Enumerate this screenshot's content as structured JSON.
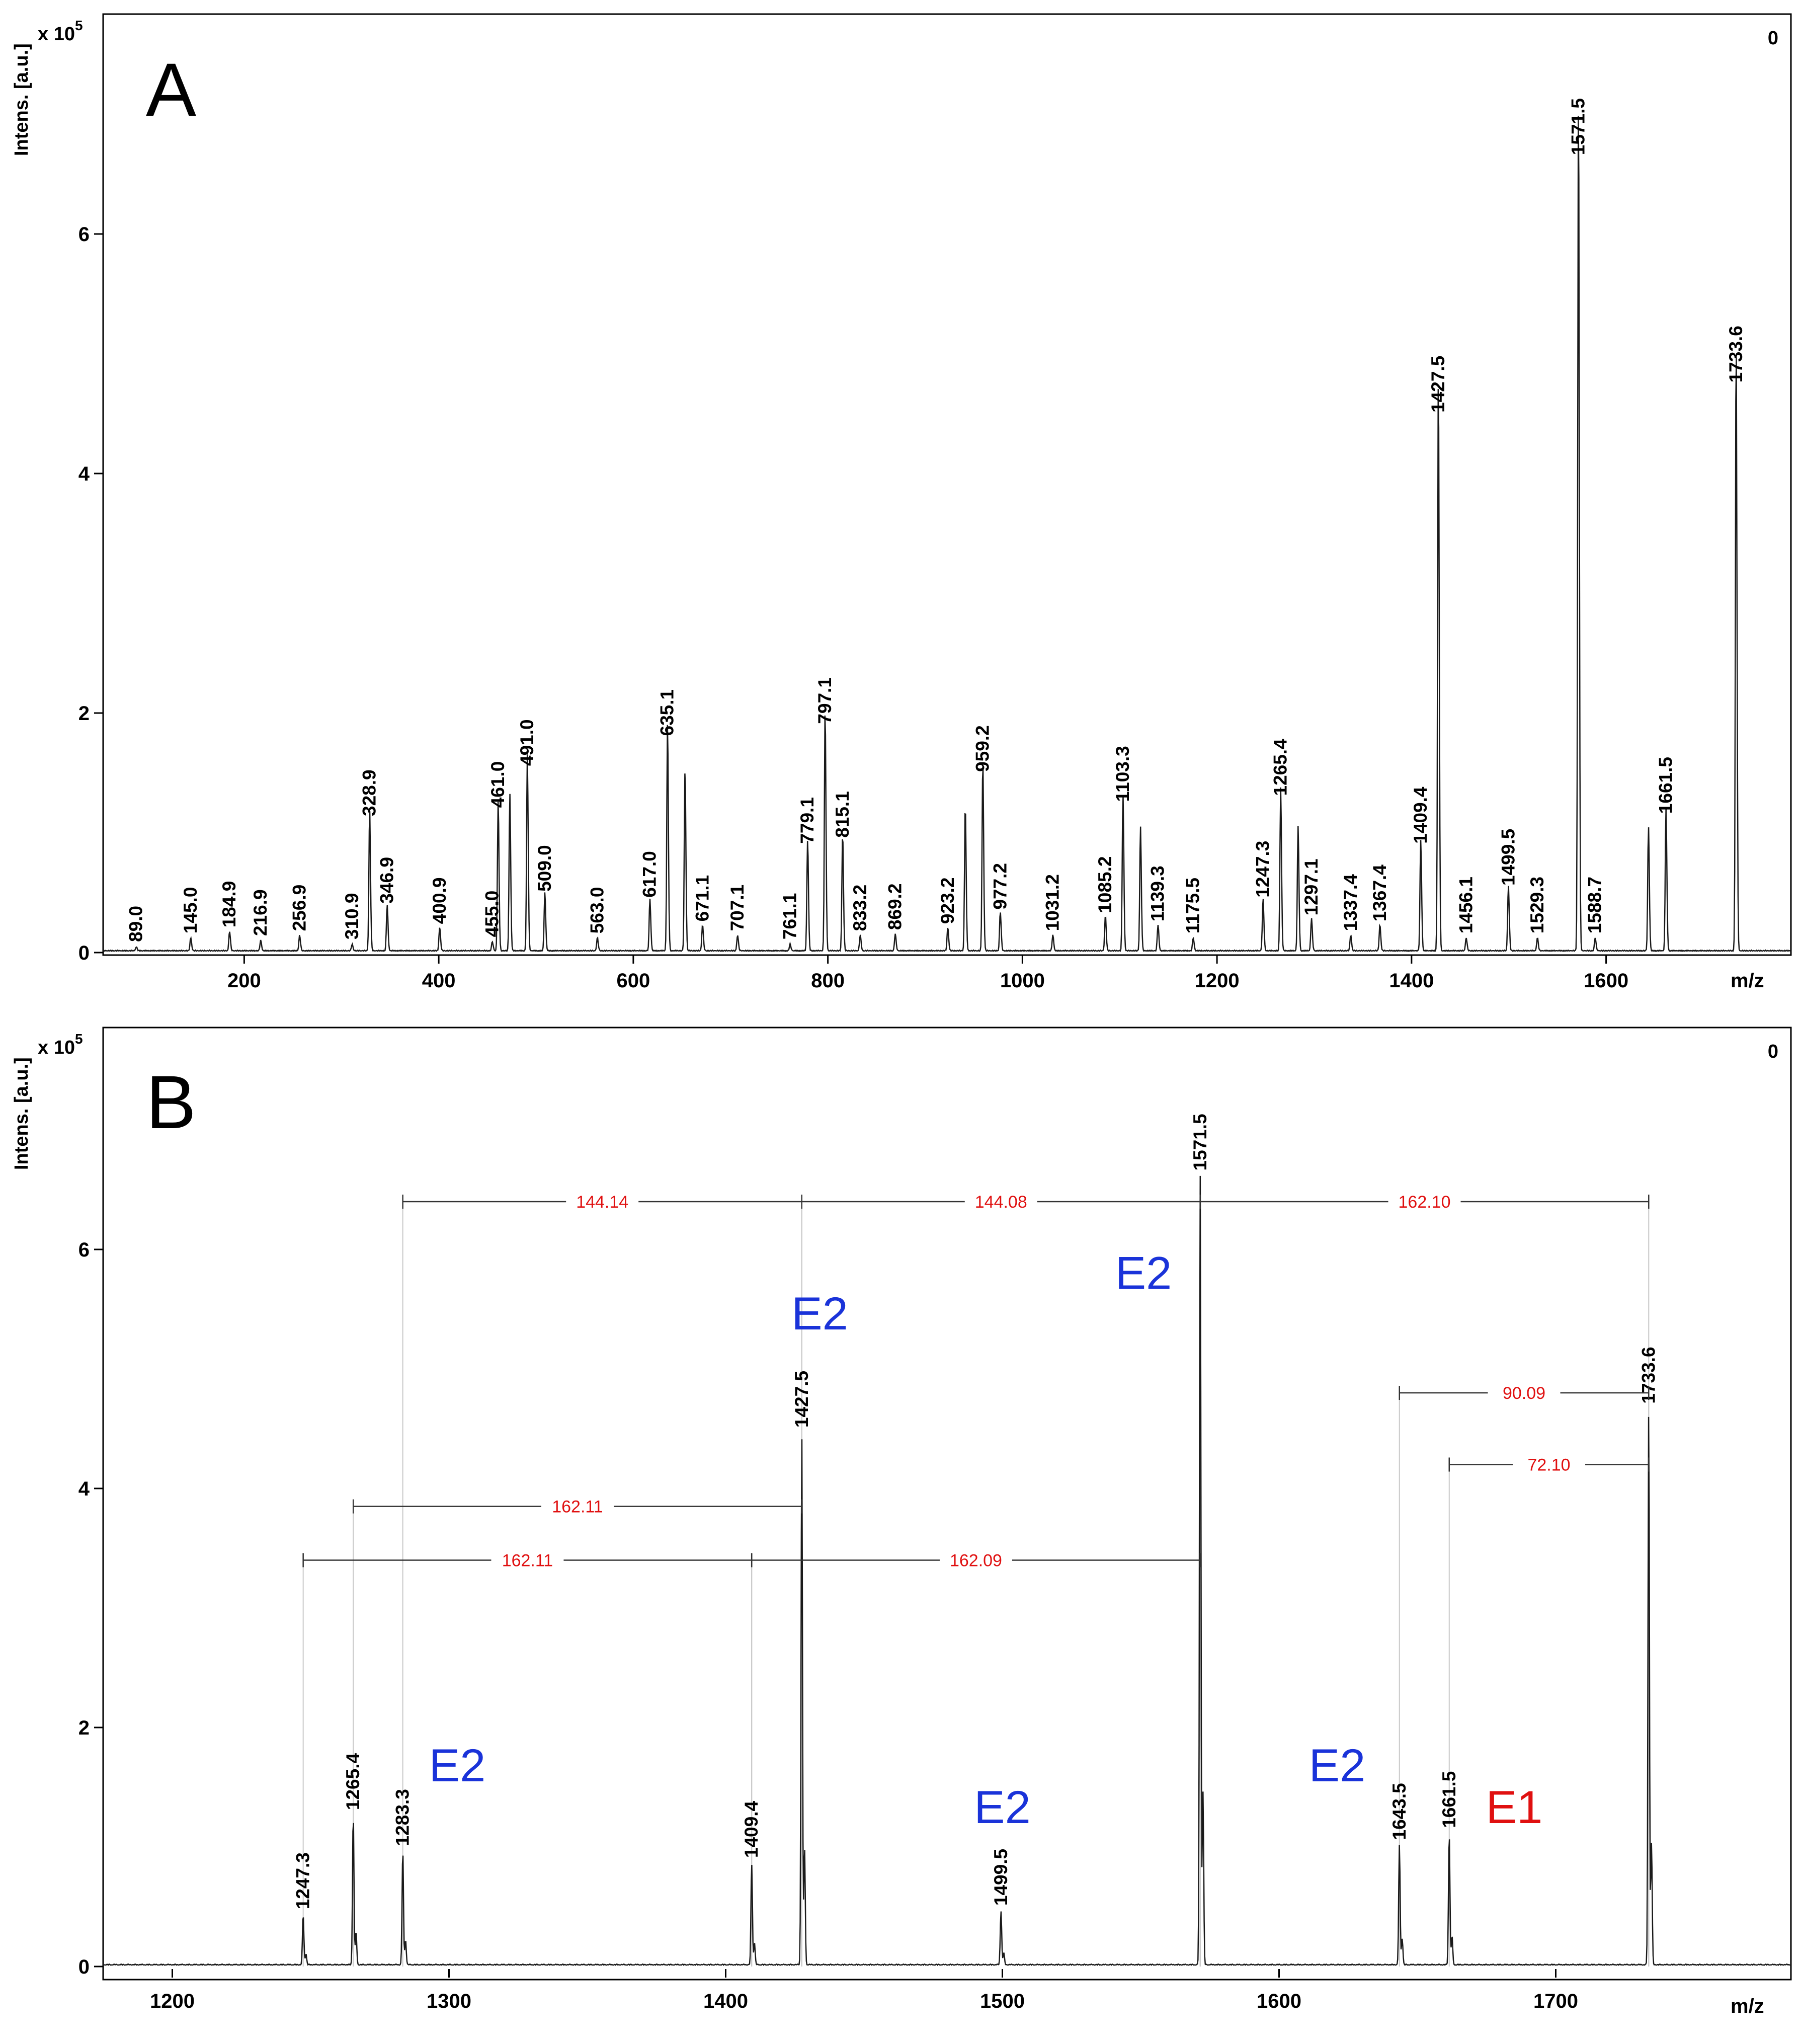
{
  "chart_data": [
    {
      "type": "line",
      "panel_label": "A",
      "corner_label": "0",
      "ylabel": "Intens. [a.u.]",
      "yscale_label": "x 10",
      "yscale_exp": "5",
      "xlabel": "m/z",
      "xlim": [
        55,
        1790
      ],
      "ylim": [
        0,
        7.8
      ],
      "xticks": [
        "200",
        "400",
        "600",
        "800",
        "1000",
        "1200",
        "1400",
        "1600"
      ],
      "yticks": [
        "0",
        "2",
        "4",
        "6"
      ],
      "peaks": [
        {
          "mz": 89.0,
          "intensity": 0.03,
          "label": "89.0"
        },
        {
          "mz": 145.0,
          "intensity": 0.1,
          "label": "145.0"
        },
        {
          "mz": 184.9,
          "intensity": 0.15,
          "label": "184.9"
        },
        {
          "mz": 216.9,
          "intensity": 0.08,
          "label": "216.9"
        },
        {
          "mz": 256.9,
          "intensity": 0.12,
          "label": "256.9"
        },
        {
          "mz": 310.9,
          "intensity": 0.05,
          "label": "310.9"
        },
        {
          "mz": 328.9,
          "intensity": 1.08,
          "label": "328.9"
        },
        {
          "mz": 346.9,
          "intensity": 0.35,
          "label": "346.9"
        },
        {
          "mz": 400.9,
          "intensity": 0.18,
          "label": "400.9"
        },
        {
          "mz": 455.0,
          "intensity": 0.07,
          "label": "455.0"
        },
        {
          "mz": 461.0,
          "intensity": 1.15,
          "label": "461.0"
        },
        {
          "mz": 491.0,
          "intensity": 1.5,
          "label": "491.0"
        },
        {
          "mz": 509.0,
          "intensity": 0.45,
          "label": "509.0"
        },
        {
          "mz": 563.0,
          "intensity": 0.1,
          "label": "563.0"
        },
        {
          "mz": 617.0,
          "intensity": 0.4,
          "label": "617.0"
        },
        {
          "mz": 635.1,
          "intensity": 1.75,
          "label": "635.1"
        },
        {
          "mz": 671.1,
          "intensity": 0.2,
          "label": "671.1"
        },
        {
          "mz": 707.1,
          "intensity": 0.12,
          "label": "707.1"
        },
        {
          "mz": 761.1,
          "intensity": 0.05,
          "label": "761.1"
        },
        {
          "mz": 779.1,
          "intensity": 0.85,
          "label": "779.1"
        },
        {
          "mz": 797.1,
          "intensity": 1.85,
          "label": "797.1"
        },
        {
          "mz": 815.1,
          "intensity": 0.9,
          "label": "815.1"
        },
        {
          "mz": 833.2,
          "intensity": 0.12,
          "label": "833.2"
        },
        {
          "mz": 869.2,
          "intensity": 0.13,
          "label": "869.2"
        },
        {
          "mz": 923.2,
          "intensity": 0.18,
          "label": "923.2"
        },
        {
          "mz": 959.2,
          "intensity": 1.45,
          "label": "959.2"
        },
        {
          "mz": 977.2,
          "intensity": 0.3,
          "label": "977.2"
        },
        {
          "mz": 1031.2,
          "intensity": 0.12,
          "label": "1031.2"
        },
        {
          "mz": 1085.2,
          "intensity": 0.27,
          "label": "1085.2"
        },
        {
          "mz": 1103.3,
          "intensity": 1.2,
          "label": "1103.3"
        },
        {
          "mz": 1139.3,
          "intensity": 0.2,
          "label": "1139.3"
        },
        {
          "mz": 1175.5,
          "intensity": 0.1,
          "label": "1175.5"
        },
        {
          "mz": 1247.3,
          "intensity": 0.4,
          "label": "1247.3"
        },
        {
          "mz": 1265.4,
          "intensity": 1.25,
          "label": "1265.4"
        },
        {
          "mz": 1297.1,
          "intensity": 0.25,
          "label": "1297.1"
        },
        {
          "mz": 1337.4,
          "intensity": 0.12,
          "label": "1337.4"
        },
        {
          "mz": 1367.4,
          "intensity": 0.2,
          "label": "1367.4"
        },
        {
          "mz": 1409.4,
          "intensity": 0.85,
          "label": "1409.4"
        },
        {
          "mz": 1427.5,
          "intensity": 4.45,
          "label": "1427.5"
        },
        {
          "mz": 1456.1,
          "intensity": 0.1,
          "label": "1456.1"
        },
        {
          "mz": 1499.5,
          "intensity": 0.5,
          "label": "1499.5"
        },
        {
          "mz": 1529.3,
          "intensity": 0.1,
          "label": "1529.3"
        },
        {
          "mz": 1571.5,
          "intensity": 6.6,
          "label": "1571.5"
        },
        {
          "mz": 1588.7,
          "intensity": 0.1,
          "label": "1588.7"
        },
        {
          "mz": 1661.5,
          "intensity": 1.1,
          "label": "1661.5"
        },
        {
          "mz": 1733.6,
          "intensity": 4.7,
          "label": "1733.6"
        }
      ],
      "unlabeled_peaks": [
        {
          "mz": 473.0,
          "intensity": 1.2
        },
        {
          "mz": 653.1,
          "intensity": 1.4
        },
        {
          "mz": 941.2,
          "intensity": 1.12
        },
        {
          "mz": 1121.3,
          "intensity": 0.95
        },
        {
          "mz": 1283.3,
          "intensity": 0.95
        },
        {
          "mz": 1643.5,
          "intensity": 0.95
        }
      ]
    },
    {
      "type": "line",
      "panel_label": "B",
      "corner_label": "0",
      "ylabel": "Intens. [a.u.]",
      "yscale_label": "x 10",
      "yscale_exp": "5",
      "xlabel": "m/z",
      "xlim": [
        1175,
        1785
      ],
      "ylim": [
        0,
        7.8
      ],
      "xticks": [
        "1200",
        "1300",
        "1400",
        "1500",
        "1600",
        "1700"
      ],
      "yticks": [
        "0",
        "2",
        "4",
        "6"
      ],
      "peaks": [
        {
          "mz": 1247.3,
          "intensity": 0.42,
          "label": "1247.3"
        },
        {
          "mz": 1265.4,
          "intensity": 1.25,
          "label": "1265.4"
        },
        {
          "mz": 1283.3,
          "intensity": 0.95,
          "label": "1283.3"
        },
        {
          "mz": 1409.4,
          "intensity": 0.85,
          "label": "1409.4"
        },
        {
          "mz": 1427.5,
          "intensity": 4.45,
          "label": "1427.5"
        },
        {
          "mz": 1499.5,
          "intensity": 0.45,
          "label": "1499.5"
        },
        {
          "mz": 1571.5,
          "intensity": 6.6,
          "label": "1571.5"
        },
        {
          "mz": 1643.5,
          "intensity": 1.0,
          "label": "1643.5"
        },
        {
          "mz": 1661.5,
          "intensity": 1.1,
          "label": "1661.5"
        },
        {
          "mz": 1733.6,
          "intensity": 4.65,
          "label": "1733.6"
        }
      ],
      "mass_differences": [
        {
          "from": 1283.3,
          "to": 1427.5,
          "y": 6.4,
          "label": "144.14"
        },
        {
          "from": 1427.5,
          "to": 1571.5,
          "y": 6.4,
          "label": "144.08"
        },
        {
          "from": 1571.5,
          "to": 1733.6,
          "y": 6.4,
          "label": "162.10"
        },
        {
          "from": 1643.5,
          "to": 1733.6,
          "y": 4.8,
          "label": "90.09"
        },
        {
          "from": 1661.5,
          "to": 1733.6,
          "y": 4.2,
          "label": "72.10"
        },
        {
          "from": 1265.4,
          "to": 1427.5,
          "y": 3.85,
          "label": "162.11"
        },
        {
          "from": 1247.3,
          "to": 1409.4,
          "y": 3.4,
          "label": "162.11"
        },
        {
          "from": 1409.4,
          "to": 1571.5,
          "y": 3.4,
          "label": "162.09"
        }
      ],
      "annotations": [
        {
          "text": "E2",
          "mz": 1303,
          "y": 1.55,
          "color": "blue"
        },
        {
          "text": "E2",
          "mz": 1434,
          "y": 5.33,
          "color": "blue"
        },
        {
          "text": "E2",
          "mz": 1500,
          "y": 1.2,
          "color": "blue"
        },
        {
          "text": "E2",
          "mz": 1551,
          "y": 5.67,
          "color": "blue"
        },
        {
          "text": "E2",
          "mz": 1621,
          "y": 1.55,
          "color": "blue"
        },
        {
          "text": "E1",
          "mz": 1685,
          "y": 1.2,
          "color": "red"
        }
      ]
    }
  ]
}
